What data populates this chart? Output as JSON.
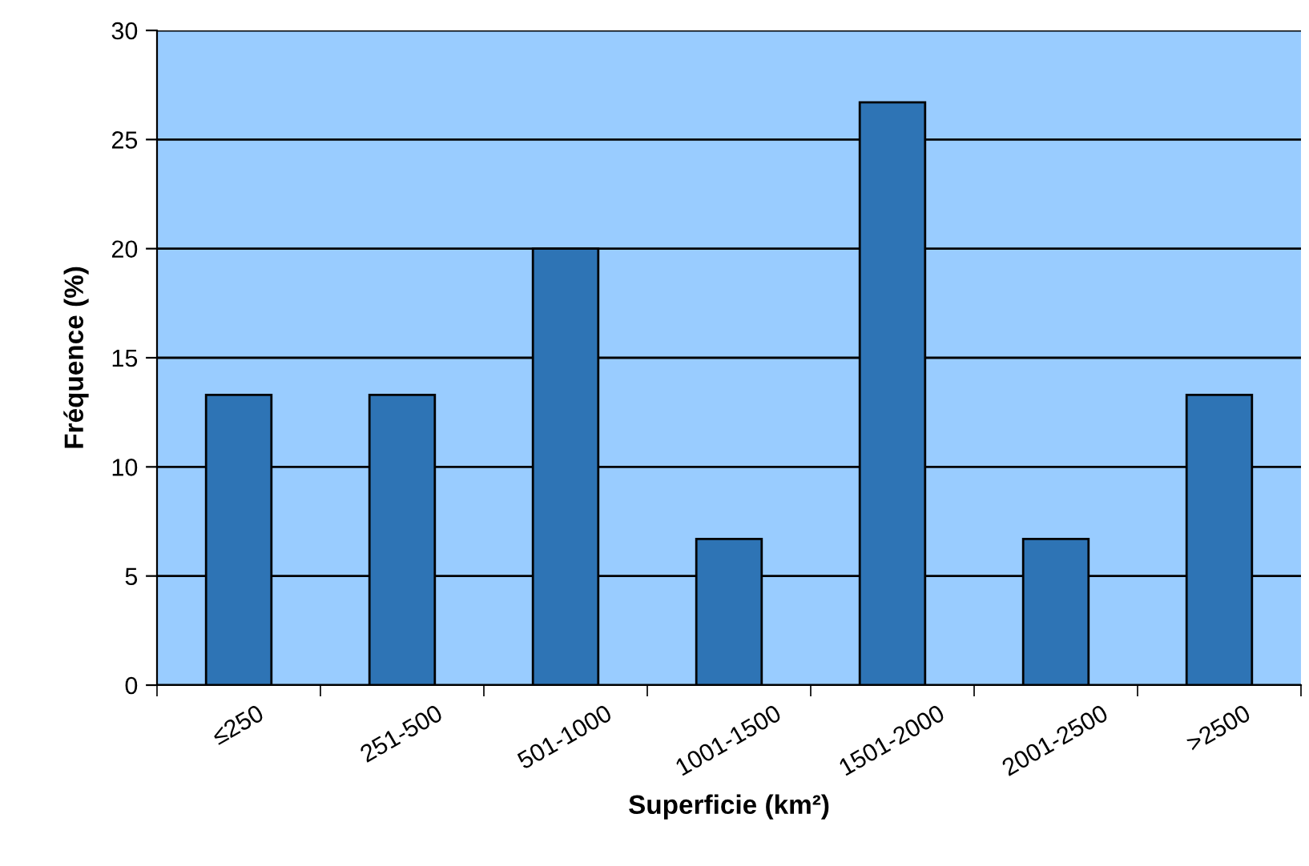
{
  "chart_data": {
    "type": "bar",
    "xlabel": "Superficie (km²)",
    "ylabel": "Fréquence (%)",
    "categories": [
      "≤250",
      "251-500",
      "501-1000",
      "1001-1500",
      "1501-2000",
      "2001-2500",
      ">2500"
    ],
    "values": [
      13.3,
      13.3,
      20,
      6.7,
      26.7,
      6.7,
      13.3
    ],
    "color": "#2e74b5",
    "ylim": [
      0,
      30
    ],
    "yticks": [
      0,
      5,
      10,
      15,
      20,
      25,
      30
    ],
    "grid": "y",
    "legend": false
  }
}
